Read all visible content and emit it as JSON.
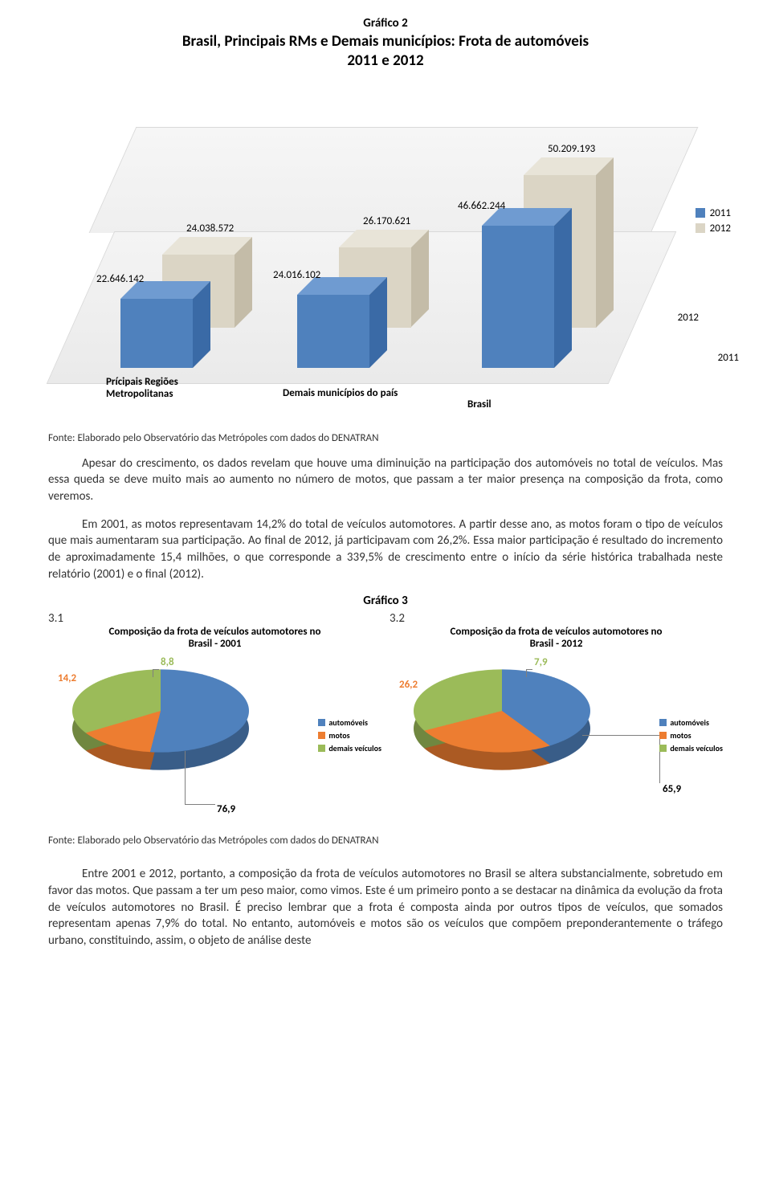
{
  "chart2": {
    "label": "Gráfico 2",
    "title": "Brasil, Principais RMs e Demais municípios: Frota de automóveis\n2011 e 2012",
    "series": [
      {
        "name": "2011",
        "color_front": "#4f81bd",
        "color_top": "#6f9bd1",
        "color_side": "#3a6aa6"
      },
      {
        "name": "2012",
        "color_front": "#dbd5c5",
        "color_top": "#e8e4d8",
        "color_side": "#c4bca8"
      }
    ],
    "categories": [
      {
        "label": "Prícipais Regiões\nMetropolitanas",
        "v2011": 22646142,
        "v2012": 24038572,
        "l2011": "22.646.142",
        "l2012": "24.038.572"
      },
      {
        "label": "Demais municípios do país",
        "v2011": 24016102,
        "v2012": 26170621,
        "l2011": "24.016.102",
        "l2012": "26.170.621"
      },
      {
        "label": "Brasil",
        "v2011": 46662244,
        "v2012": 50209193,
        "l2011": "46.662.244",
        "l2012": "50.209.193"
      }
    ],
    "depth_labels": [
      "2011",
      "2012"
    ],
    "source": "Fonte: Elaborado pelo Observatório das Metrópoles com dados do DENATRAN"
  },
  "para1": "Apesar do crescimento, os dados revelam que houve uma diminuição na participação dos automóveis no total de veículos. Mas essa queda se deve muito mais ao aumento no número de motos, que passam a ter maior presença na composição da frota, como veremos.",
  "para2": "Em 2001, as motos representavam 14,2% do total de veículos automotores. A partir desse ano, as motos foram o tipo de veículos que mais aumentaram sua participação. Ao final de 2012, já participavam com 26,2%. Essa maior participação é resultado do incremento de aproximadamente 15,4 milhões, o que corresponde a 339,5% de crescimento entre o início da série histórica trabalhada neste relatório (2001) e o final (2012).",
  "chart3": {
    "label": "Gráfico 3",
    "left": {
      "num": "3.1",
      "title": "Composição da frota de veículos automotores no\nBrasil - 2001",
      "slices": [
        {
          "label": "automóveis",
          "value": 76.9,
          "color": "#4f81bd",
          "text": "76,9"
        },
        {
          "label": "motos",
          "value": 14.2,
          "color": "#ed7d31",
          "text": "14,2"
        },
        {
          "label": "demais veículos",
          "value": 8.8,
          "color": "#9bbb59",
          "text": "8,8"
        }
      ]
    },
    "right": {
      "num": "3.2",
      "title": "Composição da frota de veículos automotores no\nBrasil - 2012",
      "slices": [
        {
          "label": "automóveis",
          "value": 65.9,
          "color": "#4f81bd",
          "text": "65,9"
        },
        {
          "label": "motos",
          "value": 26.2,
          "color": "#ed7d31",
          "text": "26,2"
        },
        {
          "label": "demais veículos",
          "value": 7.9,
          "color": "#9bbb59",
          "text": "7,9"
        }
      ]
    },
    "legend": [
      "automóveis",
      "motos",
      "demais veículos"
    ],
    "legend_colors": [
      "#4f81bd",
      "#ed7d31",
      "#9bbb59"
    ],
    "source": "Fonte: Elaborado pelo Observatório das Metrópoles com dados do DENATRAN"
  },
  "para3": "Entre 2001 e 2012, portanto, a composição da frota de veículos automotores no Brasil se altera substancialmente, sobretudo em favor das motos. Que passam a ter um peso maior, como vimos. Este é um primeiro ponto a se destacar na dinâmica da evolução da frota de veículos automotores no Brasil. É preciso lembrar que a frota é composta ainda por outros tipos de veículos, que somados representam apenas 7,9% do total. No entanto, automóveis e motos são os veículos que compõem preponderantemente o tráfego urbano, constituindo, assim, o objeto de análise deste"
}
